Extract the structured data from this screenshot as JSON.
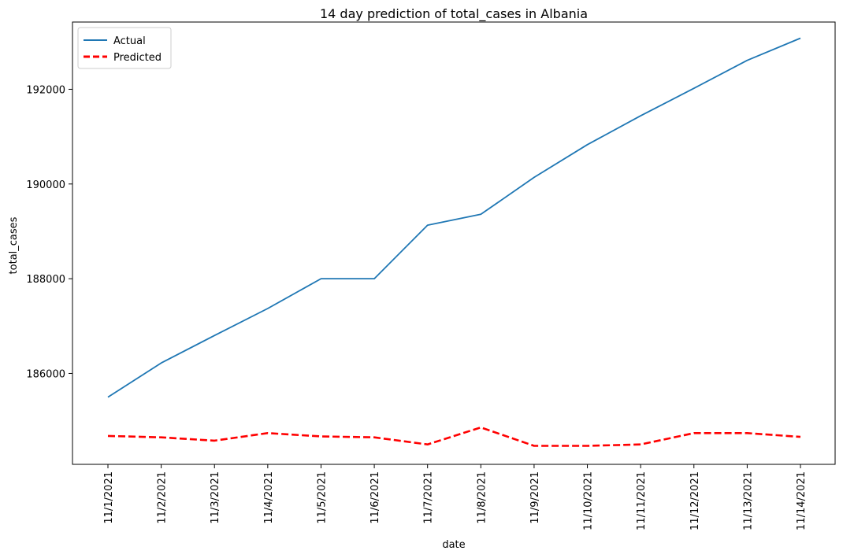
{
  "chart_data": {
    "type": "line",
    "title": "14 day prediction of total_cases in Albania",
    "xlabel": "date",
    "ylabel": "total_cases",
    "x": [
      "11/1/2021",
      "11/2/2021",
      "11/3/2021",
      "11/4/2021",
      "11/5/2021",
      "11/6/2021",
      "11/7/2021",
      "11/8/2021",
      "11/9/2021",
      "11/10/2021",
      "11/11/2021",
      "11/12/2021",
      "11/13/2021",
      "11/14/2021"
    ],
    "yticks": [
      186000,
      188000,
      190000,
      192000
    ],
    "ytick_labels": [
      "186000",
      "188000",
      "190000",
      "192000"
    ],
    "ylim": [
      184080,
      193420
    ],
    "grid": false,
    "legend_position": "top-left",
    "series": [
      {
        "name": "Actual",
        "color": "#1f77b4",
        "style": "solid",
        "values": [
          185500,
          186220,
          186800,
          187370,
          188000,
          188000,
          189130,
          189360,
          190140,
          190830,
          191440,
          192020,
          192610,
          193080
        ]
      },
      {
        "name": "Predicted",
        "color": "#ff0000",
        "style": "dashed",
        "values": [
          184680,
          184650,
          184580,
          184740,
          184670,
          184650,
          184500,
          184860,
          184470,
          184470,
          184500,
          184740,
          184740,
          184660
        ]
      }
    ]
  }
}
